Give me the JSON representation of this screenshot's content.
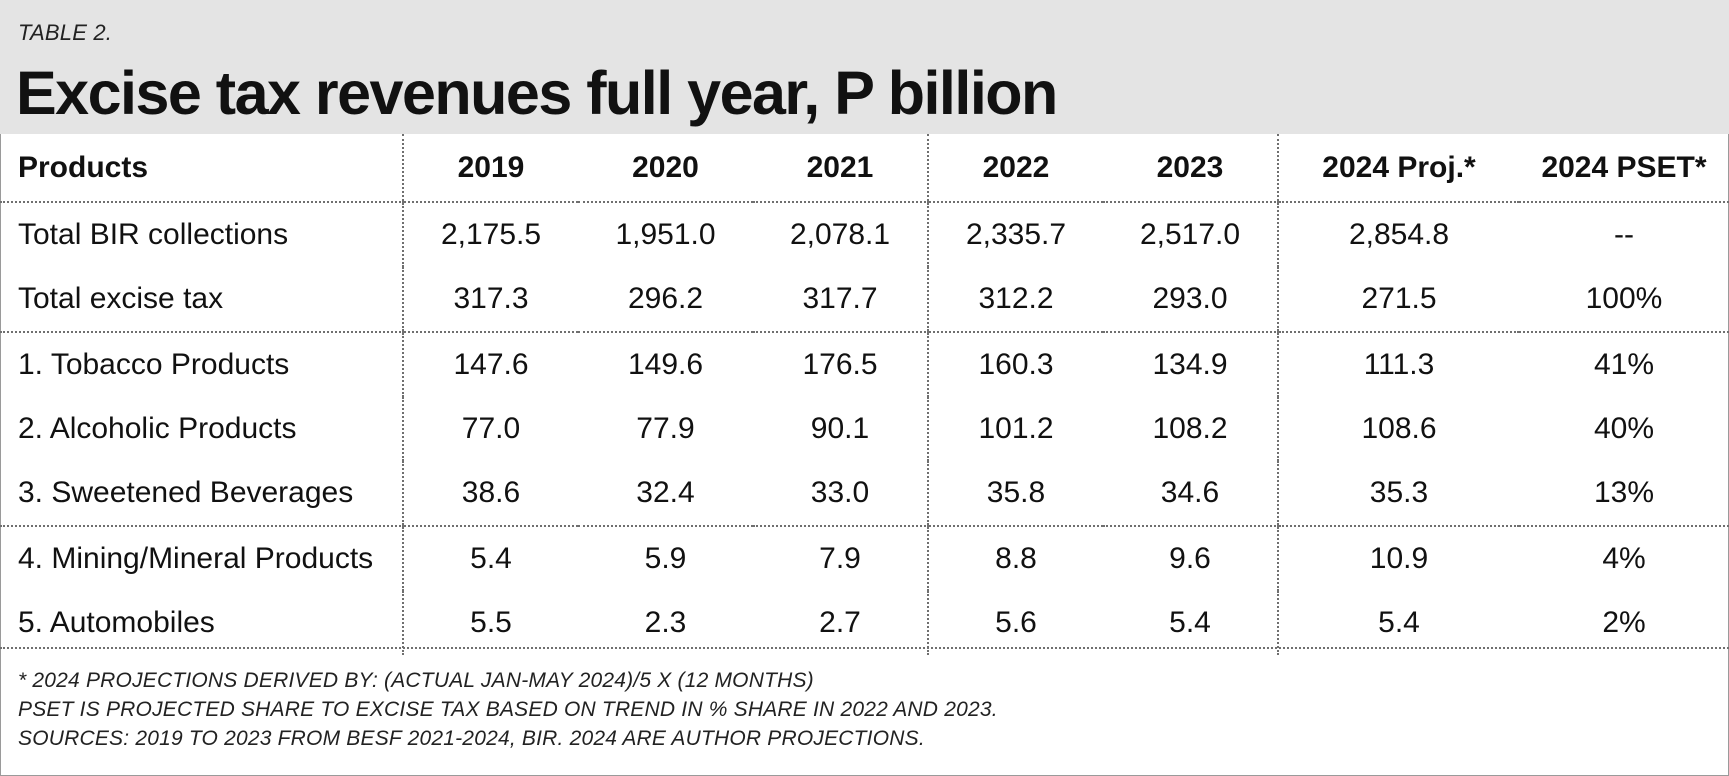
{
  "table_label": "TABLE 2.",
  "title": "Excise tax revenues full year, P billion",
  "columns": [
    "Products",
    "2019",
    "2020",
    "2021",
    "2022",
    "2023",
    "2024 Proj.*",
    "2024 PSET*"
  ],
  "rows": [
    {
      "product": "Total BIR collections",
      "values": [
        "2,175.5",
        "1,951.0",
        "2,078.1",
        "2,335.7",
        "2,517.0",
        "2,854.8",
        "--"
      ]
    },
    {
      "product": "Total excise tax",
      "values": [
        "317.3",
        "296.2",
        "317.7",
        "312.2",
        "293.0",
        "271.5",
        "100%"
      ]
    },
    {
      "product": "1. Tobacco Products",
      "values": [
        "147.6",
        "149.6",
        "176.5",
        "160.3",
        "134.9",
        "111.3",
        "41%"
      ]
    },
    {
      "product": "2. Alcoholic Products",
      "values": [
        "77.0",
        "77.9",
        "90.1",
        "101.2",
        "108.2",
        "108.6",
        "40%"
      ]
    },
    {
      "product": "3. Sweetened Beverages",
      "values": [
        "38.6",
        "32.4",
        "33.0",
        "35.8",
        "34.6",
        "35.3",
        "13%"
      ]
    },
    {
      "product": "4. Mining/Mineral Products",
      "values": [
        "5.4",
        "5.9",
        "7.9",
        "8.8",
        "9.6",
        "10.9",
        "4%"
      ]
    },
    {
      "product": "5. Automobiles",
      "values": [
        "5.5",
        "2.3",
        "2.7",
        "5.6",
        "5.4",
        "5.4",
        "2%"
      ]
    }
  ],
  "notes": [
    "* 2024 PROJECTIONS DERIVED BY: (ACTUAL JAN-MAY 2024)/5 X (12 MONTHS)",
    "PSET IS PROJECTED SHARE TO EXCISE TAX BASED ON TREND IN % SHARE IN 2022 AND 2023.",
    "SOURCES: 2019 TO 2023 FROM BESF 2021-2024, BIR. 2024 ARE AUTHOR PROJECTIONS."
  ]
}
